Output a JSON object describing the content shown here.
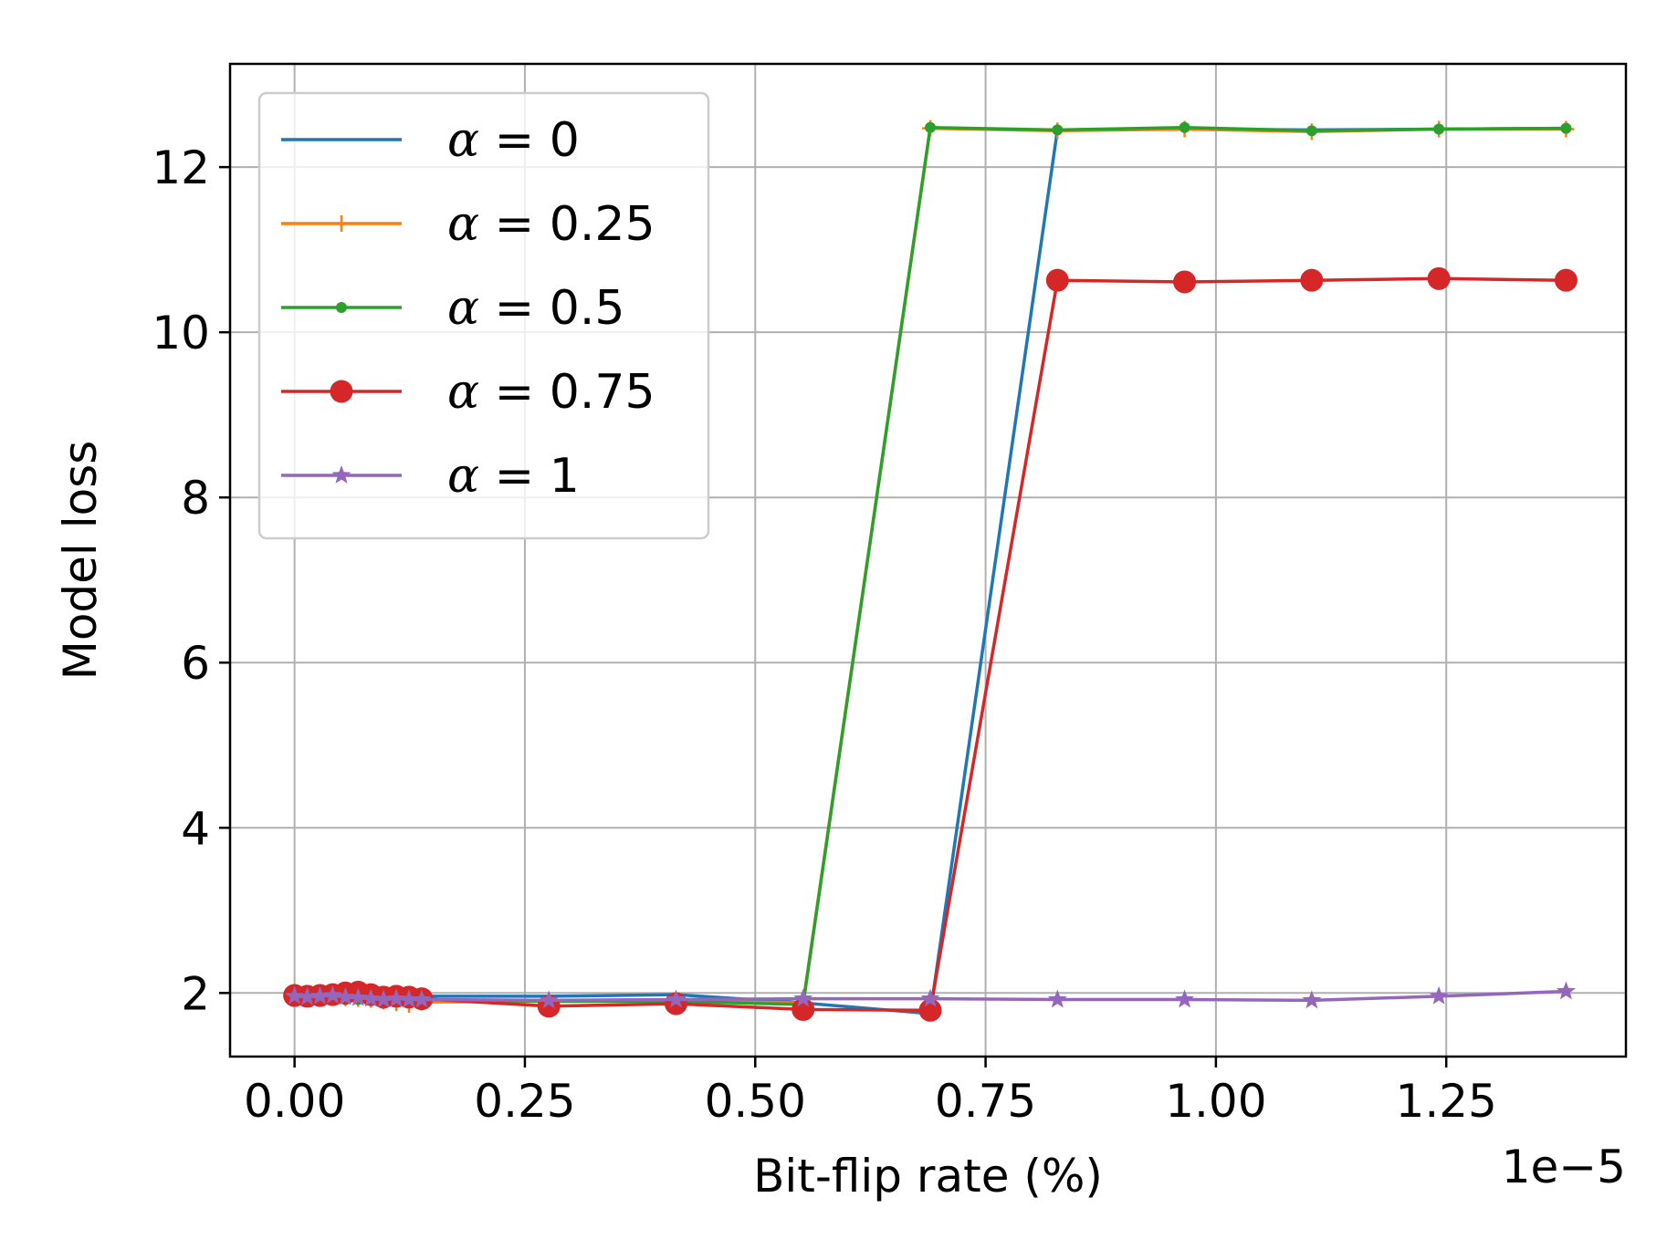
{
  "chart_data": {
    "type": "line",
    "title": "",
    "xlabel": "Bit-flip rate (%)",
    "ylabel": "Model loss",
    "x_offset_label": "1e−5",
    "xlim": [
      -0.07,
      1.445
    ],
    "ylim": [
      1.23,
      13.25
    ],
    "x_ticks": [
      0.0,
      0.25,
      0.5,
      0.75,
      1.0,
      1.25
    ],
    "x_tick_labels": [
      "0.00",
      "0.25",
      "0.50",
      "0.75",
      "1.00",
      "1.25"
    ],
    "y_ticks": [
      2,
      4,
      6,
      8,
      10,
      12
    ],
    "y_tick_labels": [
      "2",
      "4",
      "6",
      "8",
      "10",
      "12"
    ],
    "grid": true,
    "legend_position": "top-left",
    "series": [
      {
        "name": "α = 0",
        "legend_alpha": "α",
        "legend_rest": " = 0",
        "color": "#1f77b4",
        "marker": "none",
        "x": [
          0.0,
          0.0138,
          0.0276,
          0.0414,
          0.0552,
          0.069,
          0.0828,
          0.0966,
          0.1104,
          0.1242,
          0.138,
          0.276,
          0.414,
          0.552,
          0.69,
          0.828,
          0.966,
          1.104,
          1.242,
          1.38
        ],
        "y": [
          1.95,
          1.96,
          1.96,
          1.96,
          1.95,
          1.96,
          1.95,
          1.95,
          1.96,
          1.95,
          1.96,
          1.96,
          1.98,
          1.88,
          1.75,
          12.45,
          12.46,
          12.45,
          12.46,
          12.47
        ]
      },
      {
        "name": "α = 0.25",
        "legend_alpha": "α",
        "legend_rest": " = 0.25",
        "color": "#ff7f0e",
        "marker": "plus",
        "x": [
          0.0,
          0.0138,
          0.0276,
          0.0414,
          0.0552,
          0.069,
          0.0828,
          0.0966,
          0.1104,
          0.1242,
          0.138,
          0.276,
          0.414,
          0.552,
          0.69,
          0.828,
          0.966,
          1.104,
          1.242,
          1.38
        ],
        "y": [
          1.95,
          1.94,
          1.95,
          1.96,
          1.94,
          1.93,
          1.92,
          1.9,
          1.88,
          1.86,
          1.89,
          1.9,
          1.9,
          1.88,
          12.47,
          12.44,
          12.46,
          12.43,
          12.46,
          12.46
        ]
      },
      {
        "name": "α = 0.5",
        "legend_alpha": "α",
        "legend_rest": " = 0.5",
        "color": "#2ca02c",
        "marker": "point",
        "x": [
          0.0,
          0.0138,
          0.0276,
          0.0414,
          0.0552,
          0.069,
          0.0828,
          0.0966,
          0.1104,
          0.1242,
          0.138,
          0.276,
          0.414,
          0.552,
          0.69,
          0.828,
          0.966,
          1.104,
          1.242,
          1.38
        ],
        "y": [
          1.96,
          1.95,
          1.94,
          1.93,
          1.92,
          1.92,
          1.91,
          1.91,
          1.92,
          1.91,
          1.92,
          1.9,
          1.9,
          1.86,
          12.48,
          12.45,
          12.48,
          12.44,
          12.46,
          12.47
        ]
      },
      {
        "name": "α = 0.75",
        "legend_alpha": "α",
        "legend_rest": " = 0.75",
        "color": "#d62728",
        "marker": "circle",
        "x": [
          0.0,
          0.0138,
          0.0276,
          0.0414,
          0.0552,
          0.069,
          0.0828,
          0.0966,
          0.1104,
          0.1242,
          0.138,
          0.276,
          0.414,
          0.552,
          0.69,
          0.828,
          0.966,
          1.104,
          1.242,
          1.38
        ],
        "y": [
          1.97,
          1.96,
          1.97,
          1.98,
          2.0,
          2.01,
          1.98,
          1.95,
          1.96,
          1.95,
          1.93,
          1.84,
          1.87,
          1.8,
          1.79,
          10.63,
          10.61,
          10.63,
          10.65,
          10.63
        ]
      },
      {
        "name": "α = 1",
        "legend_alpha": "α",
        "legend_rest": " = 1",
        "color": "#9467bd",
        "marker": "star",
        "x": [
          0.0,
          0.0138,
          0.0276,
          0.0414,
          0.0552,
          0.069,
          0.0828,
          0.0966,
          0.1104,
          0.1242,
          0.138,
          0.276,
          0.414,
          0.552,
          0.69,
          0.828,
          0.966,
          1.104,
          1.242,
          1.38
        ],
        "y": [
          1.96,
          1.95,
          1.96,
          1.97,
          1.95,
          1.94,
          1.93,
          1.92,
          1.93,
          1.92,
          1.92,
          1.91,
          1.92,
          1.93,
          1.93,
          1.92,
          1.92,
          1.91,
          1.96,
          2.02
        ]
      }
    ]
  }
}
